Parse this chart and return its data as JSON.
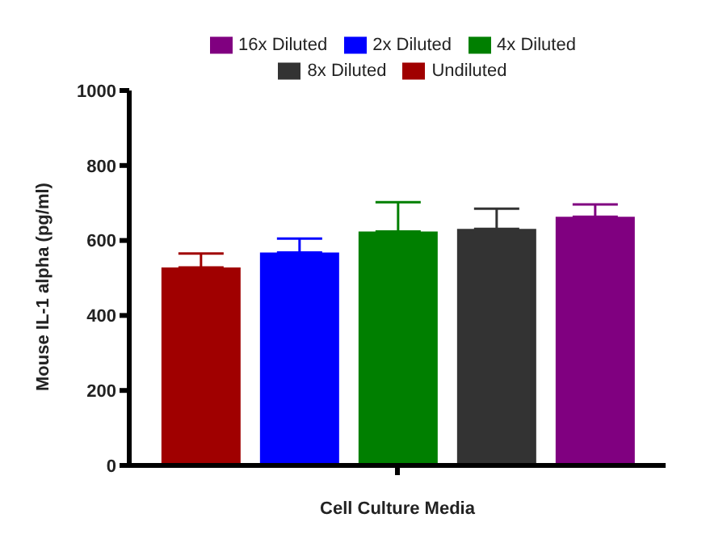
{
  "chart_data": {
    "type": "bar",
    "xlabel": "Cell Culture Media",
    "ylabel": "Mouse IL-1 alpha (pg/ml)",
    "categories": [
      null
    ],
    "series": [
      {
        "name": "Undiluted",
        "color": "#a00000",
        "values": [
          528
        ],
        "errors": [
          [
            528,
            565
          ]
        ]
      },
      {
        "name": "2x Diluted",
        "color": "#0000ff",
        "values": [
          568
        ],
        "errors": [
          [
            568,
            605
          ]
        ]
      },
      {
        "name": "4x Diluted",
        "color": "#007f00",
        "values": [
          624
        ],
        "errors": [
          [
            624,
            702
          ]
        ]
      },
      {
        "name": "8x Diluted",
        "color": "#333333",
        "values": [
          631
        ],
        "errors": [
          [
            631,
            685
          ]
        ]
      },
      {
        "name": "16x Diluted",
        "color": "#800080",
        "values": [
          663
        ],
        "errors": [
          [
            663,
            696
          ]
        ]
      }
    ],
    "ylim": [
      0,
      1000
    ],
    "yticks": [
      0,
      200,
      400,
      600,
      800,
      1000
    ],
    "grid": false,
    "legend": "top"
  }
}
